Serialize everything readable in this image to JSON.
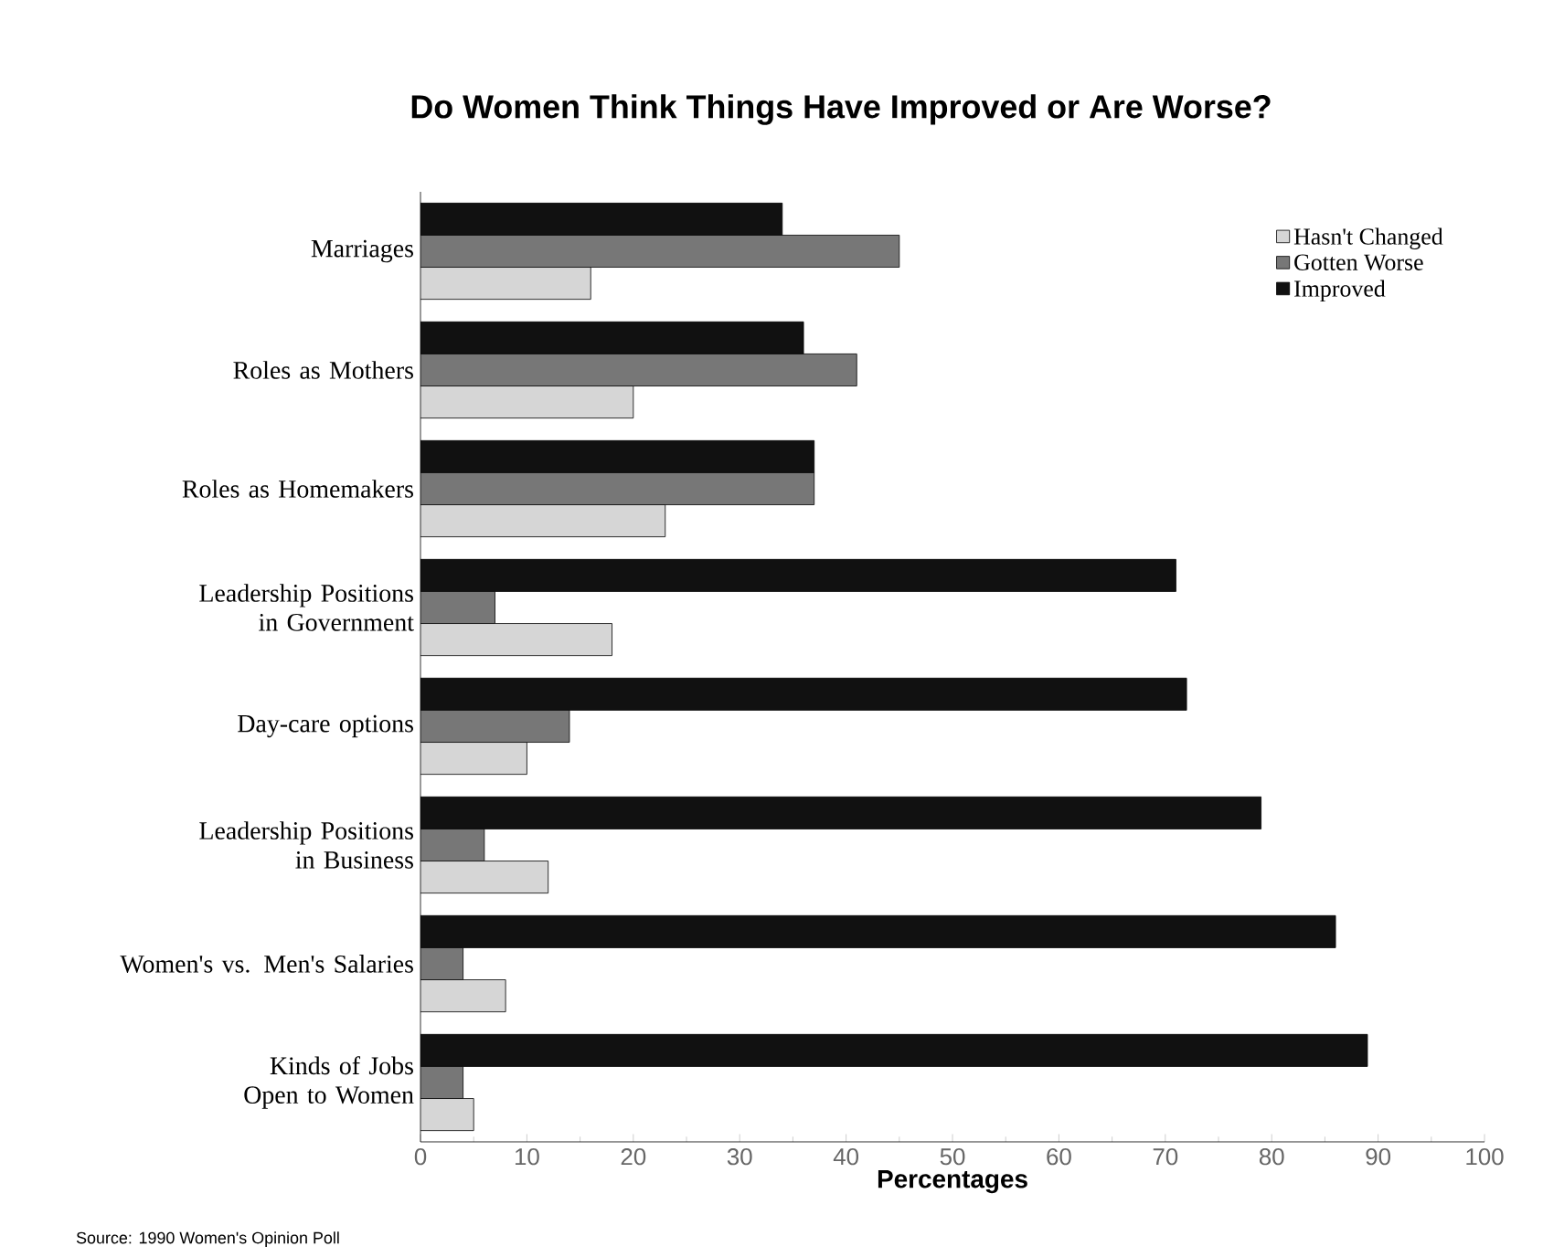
{
  "chart_data": {
    "type": "bar",
    "orientation": "horizontal",
    "title": "Do Women Think Things Have Improved or Are Worse?",
    "xlabel": "Percentages",
    "categories": [
      "Marriages",
      "Roles as Mothers",
      "Roles as Homemakers",
      "Leadership Positions in Government",
      "Day-care options",
      "Leadership Positions in Business",
      "Women's vs. Men's Salaries",
      "Kinds of Jobs Open to Women"
    ],
    "series": [
      {
        "name": "Improved",
        "color": "#111111",
        "values": [
          34,
          36,
          37,
          71,
          72,
          79,
          86,
          89
        ]
      },
      {
        "name": "Gotten Worse",
        "color": "#777777",
        "values": [
          45,
          41,
          37,
          7,
          14,
          6,
          4,
          4
        ]
      },
      {
        "name": "Hasn't Changed",
        "color": "#d6d6d6",
        "values": [
          16,
          20,
          23,
          18,
          10,
          12,
          8,
          5
        ]
      }
    ],
    "xlim": [
      0,
      100
    ],
    "xticks": [
      0,
      10,
      20,
      30,
      40,
      50,
      60,
      70,
      80,
      90,
      100
    ],
    "legend": "top right",
    "grid": false,
    "annotations": [
      "Source: 1990 Women's Opinion Poll"
    ]
  }
}
